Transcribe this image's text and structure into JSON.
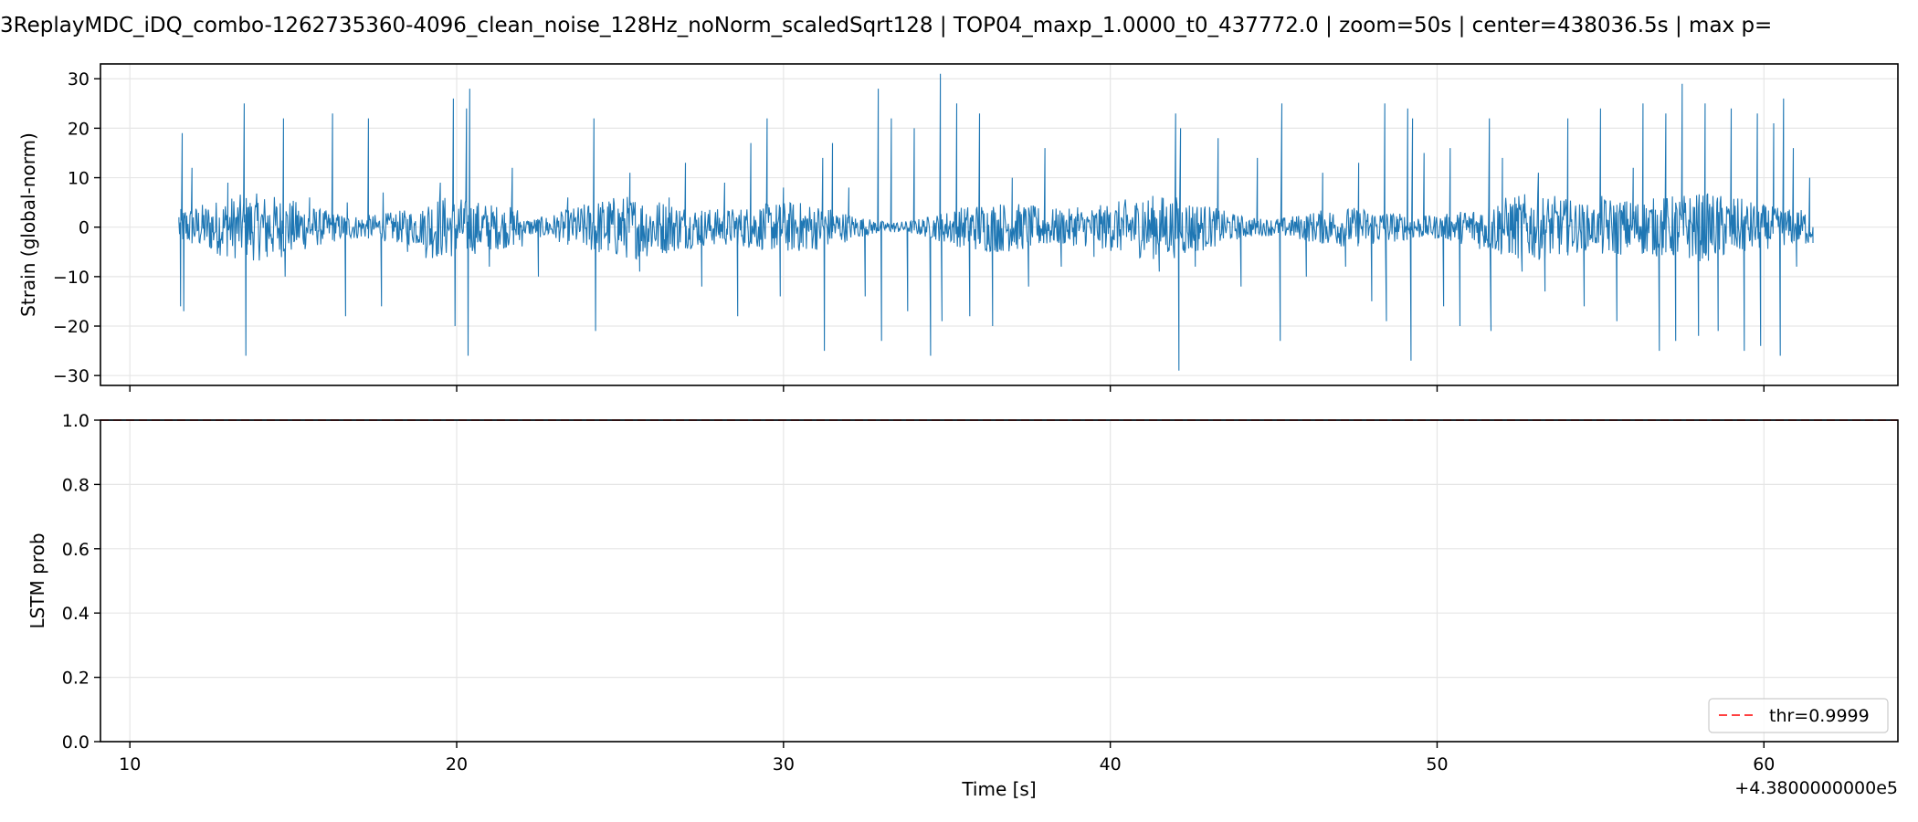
{
  "title": "3ReplayMDC_iDQ_combo-1262735360-4096_clean_noise_128Hz_noNorm_scaledSqrt128 | TOP04_maxp_1.0000_t0_437772.0 | zoom=50s | center=438036.5s | max p=",
  "chart_data": [
    {
      "type": "line",
      "name": "strain",
      "ylabel": "Strain (global-norm)",
      "xlim": [
        9.1,
        64.1
      ],
      "ylim": [
        -32,
        33
      ],
      "yticks": [
        30,
        20,
        10,
        0,
        -10,
        -20,
        -30
      ],
      "grid": true,
      "line_color": "#1f77b4",
      "x": [
        11.5,
        11.55,
        11.6,
        11.65,
        11.7,
        11.9,
        12.5,
        13.0,
        13.5,
        13.55,
        13.6,
        14.2,
        14.7,
        14.75,
        15.5,
        16.2,
        16.6,
        16.65,
        17.3,
        17.7,
        17.75,
        18.5,
        19.5,
        19.9,
        19.95,
        20.3,
        20.35,
        20.4,
        21.0,
        21.7,
        22.5,
        23.4,
        24.2,
        24.25,
        24.7,
        25.3,
        25.6,
        26.5,
        27.0,
        27.5,
        28.2,
        28.6,
        29.0,
        29.5,
        29.9,
        30.0,
        30.6,
        31.2,
        31.25,
        31.5,
        32.0,
        32.5,
        32.9,
        33.0,
        33.3,
        33.8,
        34.0,
        34.5,
        34.8,
        34.85,
        35.3,
        35.7,
        36.0,
        36.4,
        37.0,
        37.5,
        38.0,
        38.5,
        39.0,
        39.5,
        40.0,
        40.5,
        41.0,
        41.5,
        42.0,
        42.1,
        42.15,
        42.6,
        43.3,
        44.0,
        44.5,
        45.2,
        45.25,
        46.0,
        46.5,
        47.2,
        47.6,
        48.0,
        48.4,
        48.45,
        49.1,
        49.2,
        49.25,
        49.6,
        50.2,
        50.4,
        50.7,
        51.6,
        51.65,
        52.0,
        52.6,
        53.1,
        53.3,
        54.0,
        54.5,
        55.0,
        55.5,
        56.0,
        56.3,
        56.8,
        57.0,
        57.3,
        57.5,
        58.0,
        58.2,
        58.6,
        59.0,
        59.4,
        59.8,
        59.9,
        60.3,
        60.5,
        60.6,
        60.9,
        61.0,
        61.4,
        61.5
      ],
      "y": [
        2,
        -16,
        19,
        -17,
        3,
        12,
        -4,
        9,
        25,
        -26,
        4,
        -6,
        22,
        -10,
        6,
        23,
        -18,
        5,
        22,
        -16,
        7,
        -5,
        9,
        26,
        -20,
        24,
        -26,
        28,
        -8,
        12,
        -10,
        6,
        22,
        -21,
        4,
        11,
        -9,
        6,
        13,
        -12,
        9,
        -18,
        17,
        22,
        -14,
        8,
        -4,
        14,
        -25,
        17,
        8,
        -14,
        28,
        -23,
        22,
        -17,
        20,
        -26,
        31,
        -19,
        25,
        -18,
        23,
        -20,
        10,
        -12,
        16,
        -8,
        4,
        -6,
        3,
        -2,
        5,
        -9,
        23,
        -29,
        20,
        -8,
        18,
        -12,
        14,
        -23,
        25,
        -10,
        11,
        -8,
        13,
        -15,
        25,
        -19,
        24,
        -27,
        22,
        15,
        -16,
        16,
        -20,
        22,
        -21,
        14,
        -9,
        11,
        -13,
        22,
        -16,
        24,
        -19,
        12,
        25,
        -25,
        23,
        -23,
        29,
        -22,
        25,
        -21,
        24,
        -25,
        23,
        -24,
        21,
        -26,
        26,
        16,
        -8,
        10,
        0
      ]
    },
    {
      "type": "line",
      "name": "lstm",
      "ylabel": "LSTM prob",
      "xlabel": "Time [s]",
      "offset_label": "+4.3800000000e5",
      "xlim": [
        9.1,
        64.1
      ],
      "ylim": [
        0.0,
        1.0
      ],
      "xticks": [
        10,
        20,
        30,
        40,
        50,
        60
      ],
      "yticks": [
        1.0,
        0.8,
        0.6,
        0.4,
        0.2,
        0.0
      ],
      "grid": true,
      "prob_x": [
        9.1,
        64.1
      ],
      "prob_y": [
        1.0,
        1.0
      ],
      "prob_color": "#1f77b4",
      "threshold": 0.9999,
      "threshold_color": "#ff4040",
      "legend": [
        {
          "label": "thr=0.9999",
          "style": "dashed"
        }
      ],
      "legend_position": "lower right"
    }
  ]
}
